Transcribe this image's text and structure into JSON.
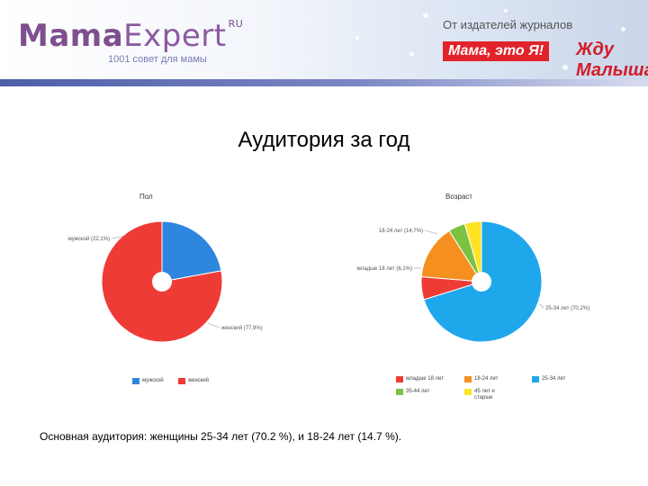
{
  "header": {
    "logo_main": "Mama",
    "logo_second": "Expert",
    "logo_suffix": "RU",
    "tagline": "1001 совет для мамы",
    "publisher_text": "От издателей журналов",
    "brand1": "Мама, это Я!",
    "brand2": "Жду Малыша",
    "accent_color": "#7e4f8f"
  },
  "page_title": "Аудитория за год",
  "chart_data": [
    {
      "type": "pie",
      "title": "Пол",
      "series": [
        {
          "name": "мужской",
          "value": 22.1,
          "color": "#2e86de"
        },
        {
          "name": "женский",
          "value": 77.9,
          "color": "#ef3b36"
        }
      ],
      "slice_labels": [
        "мужской (22,1%)",
        "женский (77,9%)"
      ],
      "legend": [
        {
          "label": "мужской",
          "color": "#2e86de"
        },
        {
          "label": "женский",
          "color": "#ef3b36"
        }
      ],
      "legend_placement": "bottom"
    },
    {
      "type": "pie",
      "title": "Возраст",
      "series": [
        {
          "name": "25-34 лет",
          "value": 70.2,
          "color": "#1fa7ec"
        },
        {
          "name": "младше 18 лет",
          "value": 6.1,
          "color": "#ef3b36"
        },
        {
          "name": "18-24 лет",
          "value": 14.7,
          "color": "#f58f1f"
        },
        {
          "name": "35-44 лет",
          "value": 4.5,
          "color": "#7bc142"
        },
        {
          "name": "45 лет и старше",
          "value": 4.5,
          "color": "#ffe325"
        }
      ],
      "slice_labels": [
        "25-34 лет (70,2%)",
        "младше 18 лет (6,1%)",
        "18-24 лет (14,7%)"
      ],
      "legend": [
        {
          "label": "младше 18 лет",
          "color": "#ef3b36"
        },
        {
          "label": "18-24 лет",
          "color": "#f58f1f"
        },
        {
          "label": "25-34 лет",
          "color": "#1fa7ec"
        },
        {
          "label": "35-44 лет",
          "color": "#7bc142"
        },
        {
          "label": "45 лет и старше",
          "color": "#ffe325"
        }
      ],
      "legend_placement": "bottom"
    }
  ],
  "footer": {
    "text": "Основная аудитория: женщины 25-34 лет (70.2 %), и 18-24 лет (14.7 %)."
  }
}
